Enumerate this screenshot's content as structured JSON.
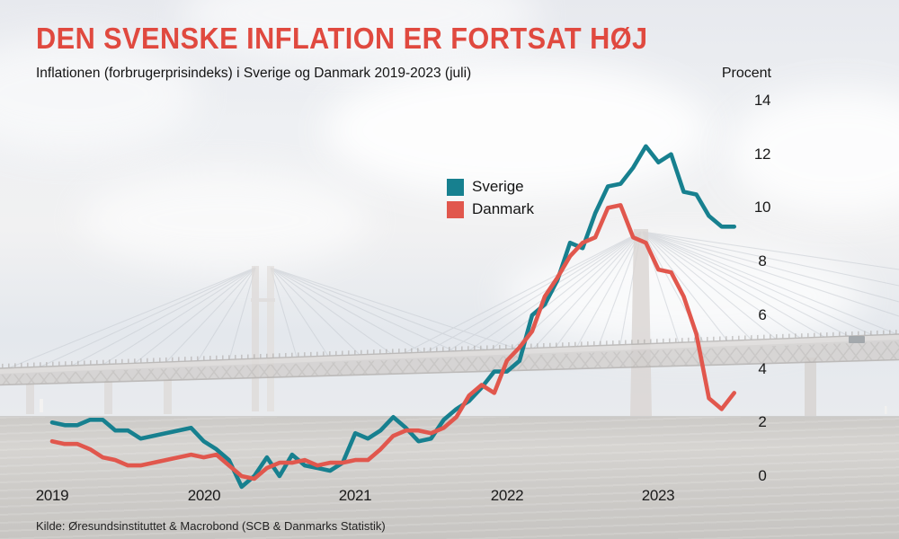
{
  "header": {
    "title": "DEN SVENSKE INFLATION ER FORTSAT HØJ",
    "subtitle": "Inflationen (forbrugerprisindeks) i Sverige og Danmark 2019-2023 (juli)",
    "unit_label": "Procent"
  },
  "footer": {
    "source": "Kilde: Øresundsinstituttet & Macrobond (SCB & Danmarks Statistik)"
  },
  "colors": {
    "title_red": "#e0493f",
    "sverige_teal": "#17808f",
    "danmark_red": "#e1574d"
  },
  "chart_data": {
    "type": "line",
    "title": "DEN SVENSKE INFLATION ER FORTSAT HØJ",
    "subtitle": "Inflationen (forbrugerprisindeks) i Sverige og Danmark 2019-2023 (juli)",
    "ylabel": "Procent",
    "x_interval": "monthly",
    "x_start": "2019-01",
    "x_end": "2023-07",
    "x_axis_years": [
      "2019",
      "2020",
      "2021",
      "2022",
      "2023"
    ],
    "y_ticks": [
      14,
      12,
      10,
      8,
      6,
      4,
      2,
      0
    ],
    "ylim": [
      -0.5,
      14
    ],
    "grid": false,
    "legend_position": "center-top",
    "series": [
      {
        "name": "Sverige",
        "color": "#17808f",
        "values": [
          2.0,
          1.9,
          1.9,
          2.1,
          2.1,
          1.7,
          1.7,
          1.4,
          1.5,
          1.6,
          1.7,
          1.8,
          1.3,
          1.0,
          0.6,
          -0.4,
          0.0,
          0.7,
          0.0,
          0.8,
          0.4,
          0.3,
          0.2,
          0.5,
          1.6,
          1.4,
          1.7,
          2.2,
          1.8,
          1.3,
          1.4,
          2.1,
          2.5,
          2.8,
          3.3,
          3.9,
          3.9,
          4.3,
          6.0,
          6.4,
          7.3,
          8.7,
          8.5,
          9.8,
          10.8,
          10.9,
          11.5,
          12.3,
          11.7,
          12.0,
          10.6,
          10.5,
          9.7,
          9.3,
          9.3
        ]
      },
      {
        "name": "Danmark",
        "color": "#e1574d",
        "values": [
          1.3,
          1.2,
          1.2,
          1.0,
          0.7,
          0.6,
          0.4,
          0.4,
          0.5,
          0.6,
          0.7,
          0.8,
          0.7,
          0.8,
          0.4,
          0.0,
          -0.1,
          0.3,
          0.5,
          0.5,
          0.6,
          0.4,
          0.5,
          0.5,
          0.6,
          0.6,
          1.0,
          1.5,
          1.7,
          1.7,
          1.6,
          1.8,
          2.2,
          3.0,
          3.4,
          3.1,
          4.3,
          4.8,
          5.4,
          6.7,
          7.4,
          8.2,
          8.7,
          8.9,
          10.0,
          10.1,
          8.9,
          8.7,
          7.7,
          7.6,
          6.7,
          5.3,
          2.9,
          2.5,
          3.1
        ]
      }
    ]
  }
}
